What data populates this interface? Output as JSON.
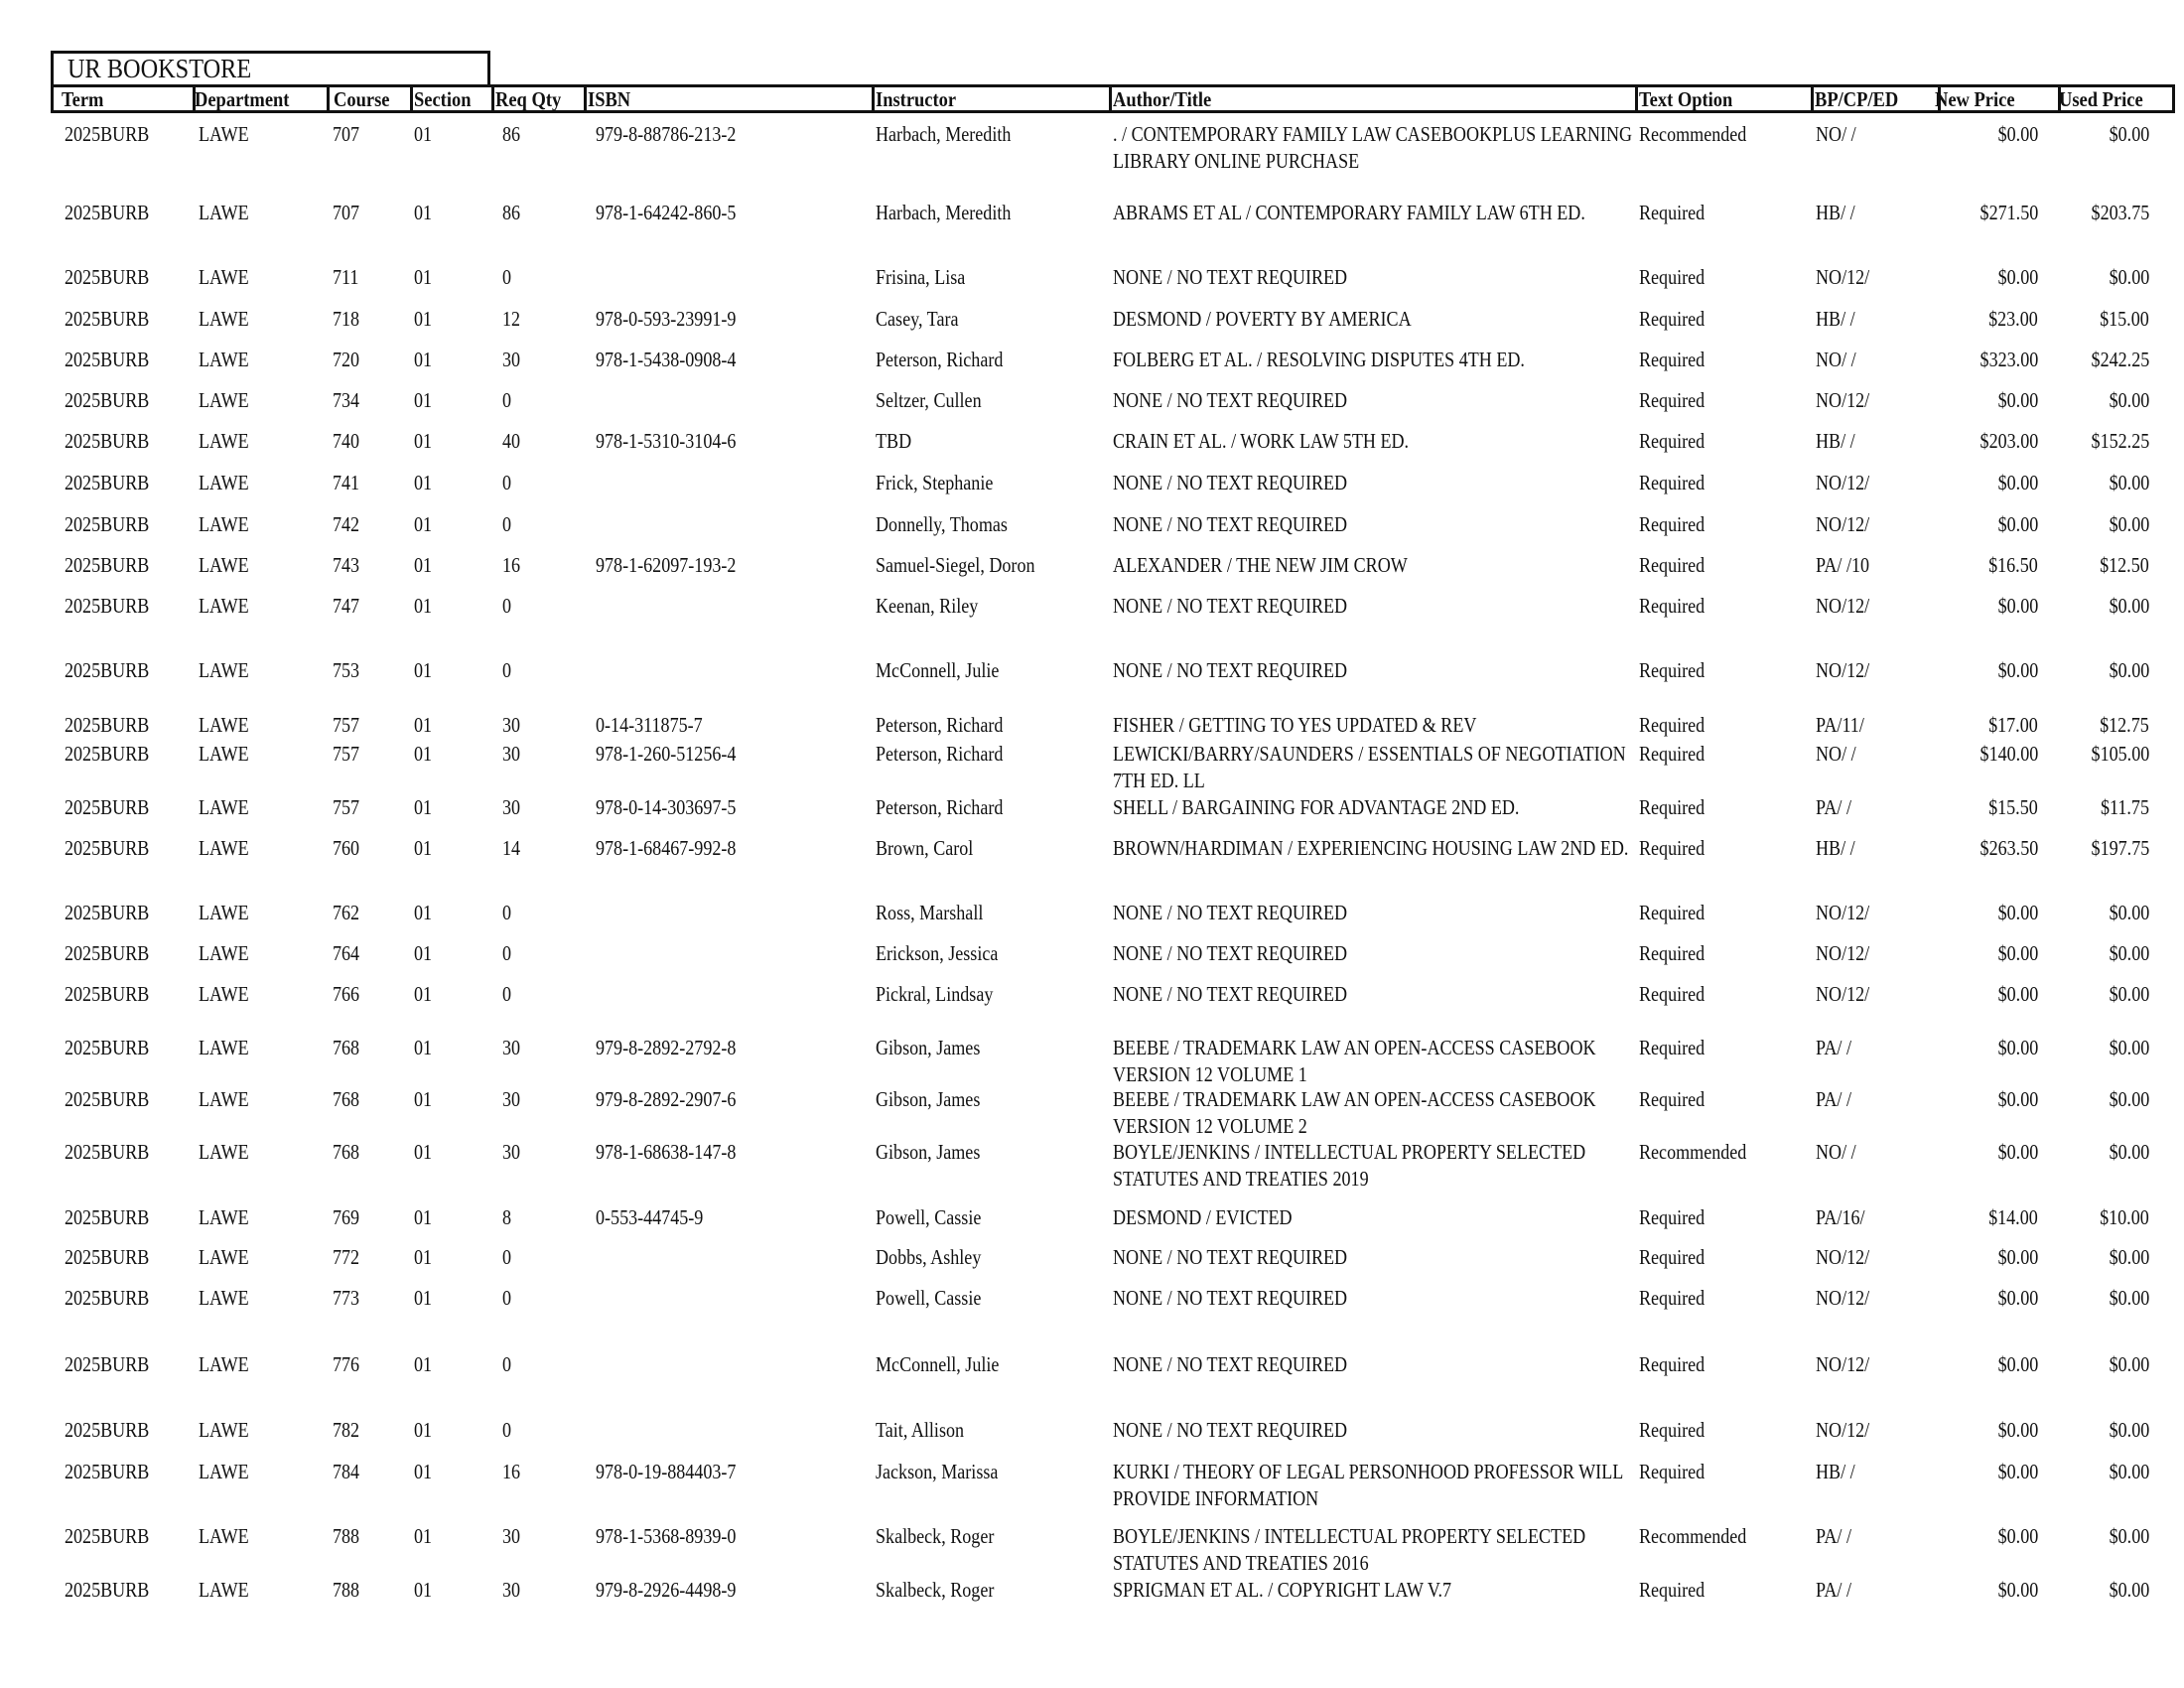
{
  "header": {
    "title": "UR BOOKSTORE",
    "columns": [
      "Term",
      "Department",
      "Course",
      "Section",
      "Req Qty",
      "ISBN",
      "Instructor",
      "Author/Title",
      "Text Option",
      "BP/CP/ED",
      "New Price",
      "Used Price"
    ]
  },
  "rows": [
    {
      "term": "2025BURB",
      "dept": "LAWE",
      "course": "707",
      "section": "01",
      "qty": "86",
      "isbn": "979-8-88786-213-2",
      "instructor": "Harbach, Meredith",
      "author_title": ". / CONTEMPORARY FAMILY LAW CASEBOOKPLUS LEARNING LIBRARY ONLINE PURCHASE",
      "option": "Recommended",
      "bp": "NO/  /",
      "new": "$0.00",
      "used": "$0.00"
    },
    {
      "term": "2025BURB",
      "dept": "LAWE",
      "course": "707",
      "section": "01",
      "qty": "86",
      "isbn": "978-1-64242-860-5",
      "instructor": "Harbach, Meredith",
      "author_title": "ABRAMS ET AL / CONTEMPORARY FAMILY LAW 6TH ED.",
      "option": "Required",
      "bp": "HB/  /",
      "new": "$271.50",
      "used": "$203.75"
    },
    {
      "term": "2025BURB",
      "dept": "LAWE",
      "course": "711",
      "section": "01",
      "qty": "0",
      "isbn": "",
      "instructor": "Frisina, Lisa",
      "author_title": "NONE / NO TEXT REQUIRED",
      "option": "Required",
      "bp": "NO/12/",
      "new": "$0.00",
      "used": "$0.00"
    },
    {
      "term": "2025BURB",
      "dept": "LAWE",
      "course": "718",
      "section": "01",
      "qty": "12",
      "isbn": "978-0-593-23991-9",
      "instructor": "Casey, Tara",
      "author_title": "DESMOND / POVERTY BY AMERICA",
      "option": "Required",
      "bp": "HB/  /",
      "new": "$23.00",
      "used": "$15.00"
    },
    {
      "term": "2025BURB",
      "dept": "LAWE",
      "course": "720",
      "section": "01",
      "qty": "30",
      "isbn": "978-1-5438-0908-4",
      "instructor": "Peterson, Richard",
      "author_title": "FOLBERG ET AL. / RESOLVING DISPUTES 4TH ED.",
      "option": "Required",
      "bp": "NO/  /",
      "new": "$323.00",
      "used": "$242.25"
    },
    {
      "term": "2025BURB",
      "dept": "LAWE",
      "course": "734",
      "section": "01",
      "qty": "0",
      "isbn": "",
      "instructor": "Seltzer, Cullen",
      "author_title": "NONE / NO TEXT REQUIRED",
      "option": "Required",
      "bp": "NO/12/",
      "new": "$0.00",
      "used": "$0.00"
    },
    {
      "term": "2025BURB",
      "dept": "LAWE",
      "course": "740",
      "section": "01",
      "qty": "40",
      "isbn": "978-1-5310-3104-6",
      "instructor": "TBD",
      "author_title": "CRAIN ET AL. / WORK LAW 5TH ED.",
      "option": "Required",
      "bp": "HB/  /",
      "new": "$203.00",
      "used": "$152.25"
    },
    {
      "term": "2025BURB",
      "dept": "LAWE",
      "course": "741",
      "section": "01",
      "qty": "0",
      "isbn": "",
      "instructor": "Frick, Stephanie",
      "author_title": "NONE / NO TEXT REQUIRED",
      "option": "Required",
      "bp": "NO/12/",
      "new": "$0.00",
      "used": "$0.00"
    },
    {
      "term": "2025BURB",
      "dept": "LAWE",
      "course": "742",
      "section": "01",
      "qty": "0",
      "isbn": "",
      "instructor": "Donnelly, Thomas",
      "author_title": "NONE / NO TEXT REQUIRED",
      "option": "Required",
      "bp": "NO/12/",
      "new": "$0.00",
      "used": "$0.00"
    },
    {
      "term": "2025BURB",
      "dept": "LAWE",
      "course": "743",
      "section": "01",
      "qty": "16",
      "isbn": "978-1-62097-193-2",
      "instructor": "Samuel-Siegel, Doron",
      "author_title": "ALEXANDER / THE NEW JIM CROW",
      "option": "Required",
      "bp": "PA/  /10",
      "new": "$16.50",
      "used": "$12.50"
    },
    {
      "term": "2025BURB",
      "dept": "LAWE",
      "course": "747",
      "section": "01",
      "qty": "0",
      "isbn": "",
      "instructor": "Keenan, Riley",
      "author_title": "NONE / NO TEXT REQUIRED",
      "option": "Required",
      "bp": "NO/12/",
      "new": "$0.00",
      "used": "$0.00"
    },
    {
      "term": "2025BURB",
      "dept": "LAWE",
      "course": "753",
      "section": "01",
      "qty": "0",
      "isbn": "",
      "instructor": "McConnell, Julie",
      "author_title": "NONE / NO TEXT REQUIRED",
      "option": "Required",
      "bp": "NO/12/",
      "new": "$0.00",
      "used": "$0.00"
    },
    {
      "term": "2025BURB",
      "dept": "LAWE",
      "course": "757",
      "section": "01",
      "qty": "30",
      "isbn": "0-14-311875-7",
      "instructor": "Peterson, Richard",
      "author_title": "FISHER / GETTING TO YES UPDATED & REV",
      "option": "Required",
      "bp": "PA/11/",
      "new": "$17.00",
      "used": "$12.75"
    },
    {
      "term": "2025BURB",
      "dept": "LAWE",
      "course": "757",
      "section": "01",
      "qty": "30",
      "isbn": "978-1-260-51256-4",
      "instructor": "Peterson, Richard",
      "author_title": "LEWICKI/BARRY/SAUNDERS / ESSENTIALS OF NEGOTIATION 7TH ED. LL",
      "option": "Required",
      "bp": "NO/  /",
      "new": "$140.00",
      "used": "$105.00"
    },
    {
      "term": "2025BURB",
      "dept": "LAWE",
      "course": "757",
      "section": "01",
      "qty": "30",
      "isbn": "978-0-14-303697-5",
      "instructor": "Peterson, Richard",
      "author_title": "SHELL / BARGAINING FOR ADVANTAGE 2ND ED.",
      "option": "Required",
      "bp": "PA/  /",
      "new": "$15.50",
      "used": "$11.75"
    },
    {
      "term": "2025BURB",
      "dept": "LAWE",
      "course": "760",
      "section": "01",
      "qty": "14",
      "isbn": "978-1-68467-992-8",
      "instructor": "Brown, Carol",
      "author_title": "BROWN/HARDIMAN / EXPERIENCING HOUSING LAW 2ND ED.",
      "option": "Required",
      "bp": "HB/  /",
      "new": "$263.50",
      "used": "$197.75"
    },
    {
      "term": "2025BURB",
      "dept": "LAWE",
      "course": "762",
      "section": "01",
      "qty": "0",
      "isbn": "",
      "instructor": "Ross, Marshall",
      "author_title": "NONE / NO TEXT REQUIRED",
      "option": "Required",
      "bp": "NO/12/",
      "new": "$0.00",
      "used": "$0.00"
    },
    {
      "term": "2025BURB",
      "dept": "LAWE",
      "course": "764",
      "section": "01",
      "qty": "0",
      "isbn": "",
      "instructor": "Erickson, Jessica",
      "author_title": "NONE / NO TEXT REQUIRED",
      "option": "Required",
      "bp": "NO/12/",
      "new": "$0.00",
      "used": "$0.00"
    },
    {
      "term": "2025BURB",
      "dept": "LAWE",
      "course": "766",
      "section": "01",
      "qty": "0",
      "isbn": "",
      "instructor": "Pickral, Lindsay",
      "author_title": "NONE / NO TEXT REQUIRED",
      "option": "Required",
      "bp": "NO/12/",
      "new": "$0.00",
      "used": "$0.00"
    },
    {
      "term": "2025BURB",
      "dept": "LAWE",
      "course": "768",
      "section": "01",
      "qty": "30",
      "isbn": "979-8-2892-2792-8",
      "instructor": "Gibson, James",
      "author_title": "BEEBE / TRADEMARK LAW AN OPEN-ACCESS CASEBOOK VERSION 12 VOLUME 1",
      "option": "Required",
      "bp": "PA/  /",
      "new": "$0.00",
      "used": "$0.00"
    },
    {
      "term": "2025BURB",
      "dept": "LAWE",
      "course": "768",
      "section": "01",
      "qty": "30",
      "isbn": "979-8-2892-2907-6",
      "instructor": "Gibson, James",
      "author_title": "BEEBE / TRADEMARK LAW AN OPEN-ACCESS CASEBOOK VERSION 12 VOLUME 2",
      "option": "Required",
      "bp": "PA/  /",
      "new": "$0.00",
      "used": "$0.00"
    },
    {
      "term": "2025BURB",
      "dept": "LAWE",
      "course": "768",
      "section": "01",
      "qty": "30",
      "isbn": "978-1-68638-147-8",
      "instructor": "Gibson, James",
      "author_title": "BOYLE/JENKINS / INTELLECTUAL PROPERTY SELECTED STATUTES AND TREATIES 2019",
      "option": "Recommended",
      "bp": "NO/  /",
      "new": "$0.00",
      "used": "$0.00"
    },
    {
      "term": "2025BURB",
      "dept": "LAWE",
      "course": "769",
      "section": "01",
      "qty": "8",
      "isbn": "0-553-44745-9",
      "instructor": "Powell, Cassie",
      "author_title": "DESMOND / EVICTED",
      "option": "Required",
      "bp": "PA/16/",
      "new": "$14.00",
      "used": "$10.00"
    },
    {
      "term": "2025BURB",
      "dept": "LAWE",
      "course": "772",
      "section": "01",
      "qty": "0",
      "isbn": "",
      "instructor": "Dobbs, Ashley",
      "author_title": "NONE / NO TEXT REQUIRED",
      "option": "Required",
      "bp": "NO/12/",
      "new": "$0.00",
      "used": "$0.00"
    },
    {
      "term": "2025BURB",
      "dept": "LAWE",
      "course": "773",
      "section": "01",
      "qty": "0",
      "isbn": "",
      "instructor": "Powell, Cassie",
      "author_title": "NONE / NO TEXT REQUIRED",
      "option": "Required",
      "bp": "NO/12/",
      "new": "$0.00",
      "used": "$0.00"
    },
    {
      "term": "2025BURB",
      "dept": "LAWE",
      "course": "776",
      "section": "01",
      "qty": "0",
      "isbn": "",
      "instructor": "McConnell, Julie",
      "author_title": "NONE / NO TEXT REQUIRED",
      "option": "Required",
      "bp": "NO/12/",
      "new": "$0.00",
      "used": "$0.00"
    },
    {
      "term": "2025BURB",
      "dept": "LAWE",
      "course": "782",
      "section": "01",
      "qty": "0",
      "isbn": "",
      "instructor": "Tait, Allison",
      "author_title": "NONE / NO TEXT REQUIRED",
      "option": "Required",
      "bp": "NO/12/",
      "new": "$0.00",
      "used": "$0.00"
    },
    {
      "term": "2025BURB",
      "dept": "LAWE",
      "course": "784",
      "section": "01",
      "qty": "16",
      "isbn": "978-0-19-884403-7",
      "instructor": "Jackson, Marissa",
      "author_title": "KURKI / THEORY OF LEGAL PERSONHOOD PROFESSOR WILL PROVIDE INFORMATION",
      "option": "Required",
      "bp": "HB/  /",
      "new": "$0.00",
      "used": "$0.00"
    },
    {
      "term": "2025BURB",
      "dept": "LAWE",
      "course": "788",
      "section": "01",
      "qty": "30",
      "isbn": "978-1-5368-8939-0",
      "instructor": "Skalbeck, Roger",
      "author_title": "BOYLE/JENKINS / INTELLECTUAL PROPERTY SELECTED STATUTES AND TREATIES 2016",
      "option": "Recommended",
      "bp": "PA/  /",
      "new": "$0.00",
      "used": "$0.00"
    },
    {
      "term": "2025BURB",
      "dept": "LAWE",
      "course": "788",
      "section": "01",
      "qty": "30",
      "isbn": "979-8-2926-4498-9",
      "instructor": "Skalbeck, Roger",
      "author_title": "SPRIGMAN ET AL. / COPYRIGHT LAW V.7",
      "option": "Required",
      "bp": "PA/  /",
      "new": "$0.00",
      "used": "$0.00"
    }
  ]
}
